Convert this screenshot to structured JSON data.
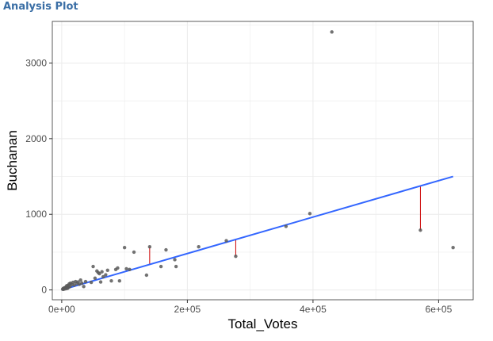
{
  "page": {
    "title": "Analysis Plot",
    "title_color": "#3a6ea5"
  },
  "chart_data": {
    "type": "scatter",
    "title": "",
    "xlabel": "Total_Votes",
    "ylabel": "Buchanan",
    "xlim": [
      -15000,
      655000
    ],
    "ylim": [
      -130,
      3550
    ],
    "x_ticks": [
      0,
      200000,
      400000,
      600000
    ],
    "x_tick_labels": [
      "0e+00",
      "2e+05",
      "4e+05",
      "6e+05"
    ],
    "y_ticks": [
      0,
      1000,
      2000,
      3000
    ],
    "y_tick_labels": [
      "0",
      "1000",
      "2000",
      "3000"
    ],
    "grid": true,
    "colors": {
      "points": "#595959",
      "fit_line": "#3366ff",
      "residuals": "#cc0000",
      "panel_border": "#333333",
      "grid": "#ebebeb"
    },
    "points": [
      {
        "x": 1500,
        "y": 10
      },
      {
        "x": 2500,
        "y": 20
      },
      {
        "x": 3000,
        "y": 8
      },
      {
        "x": 4000,
        "y": 25
      },
      {
        "x": 5000,
        "y": 30
      },
      {
        "x": 6000,
        "y": 15
      },
      {
        "x": 7000,
        "y": 40
      },
      {
        "x": 8000,
        "y": 55
      },
      {
        "x": 9000,
        "y": 20
      },
      {
        "x": 10000,
        "y": 60
      },
      {
        "x": 11000,
        "y": 35
      },
      {
        "x": 12000,
        "y": 80
      },
      {
        "x": 13000,
        "y": 45
      },
      {
        "x": 14000,
        "y": 90
      },
      {
        "x": 16000,
        "y": 70
      },
      {
        "x": 18000,
        "y": 100
      },
      {
        "x": 20000,
        "y": 65
      },
      {
        "x": 22000,
        "y": 110
      },
      {
        "x": 24000,
        "y": 85
      },
      {
        "x": 26000,
        "y": 105
      },
      {
        "x": 28000,
        "y": 75
      },
      {
        "x": 30000,
        "y": 130
      },
      {
        "x": 32000,
        "y": 90
      },
      {
        "x": 35000,
        "y": 45
      },
      {
        "x": 38000,
        "y": 110
      },
      {
        "x": 47000,
        "y": 100
      },
      {
        "x": 50000,
        "y": 310
      },
      {
        "x": 53000,
        "y": 155
      },
      {
        "x": 56000,
        "y": 250
      },
      {
        "x": 58000,
        "y": 230
      },
      {
        "x": 60000,
        "y": 215
      },
      {
        "x": 62000,
        "y": 105
      },
      {
        "x": 64000,
        "y": 240
      },
      {
        "x": 66000,
        "y": 175
      },
      {
        "x": 70000,
        "y": 200
      },
      {
        "x": 73000,
        "y": 260
      },
      {
        "x": 79000,
        "y": 120
      },
      {
        "x": 86000,
        "y": 270
      },
      {
        "x": 89000,
        "y": 290
      },
      {
        "x": 92000,
        "y": 120
      },
      {
        "x": 100000,
        "y": 560
      },
      {
        "x": 103000,
        "y": 280
      },
      {
        "x": 108000,
        "y": 270
      },
      {
        "x": 115000,
        "y": 500
      },
      {
        "x": 135000,
        "y": 195
      },
      {
        "x": 140000,
        "y": 570
      },
      {
        "x": 158000,
        "y": 310
      },
      {
        "x": 166000,
        "y": 530
      },
      {
        "x": 180000,
        "y": 400
      },
      {
        "x": 182000,
        "y": 310
      },
      {
        "x": 218000,
        "y": 570
      },
      {
        "x": 262000,
        "y": 650
      },
      {
        "x": 277000,
        "y": 445
      },
      {
        "x": 357000,
        "y": 840
      },
      {
        "x": 395000,
        "y": 1010
      },
      {
        "x": 430000,
        "y": 3410
      },
      {
        "x": 571000,
        "y": 790
      },
      {
        "x": 623000,
        "y": 560
      }
    ],
    "fit_line": {
      "x": [
        0,
        623000
      ],
      "y": [
        0,
        1500
      ]
    },
    "residual_segments": [
      {
        "x": 140000,
        "y_from": 570,
        "y_to": 340
      },
      {
        "x": 277000,
        "y_from": 445,
        "y_to": 670
      },
      {
        "x": 571000,
        "y_from": 790,
        "y_to": 1380
      }
    ]
  }
}
